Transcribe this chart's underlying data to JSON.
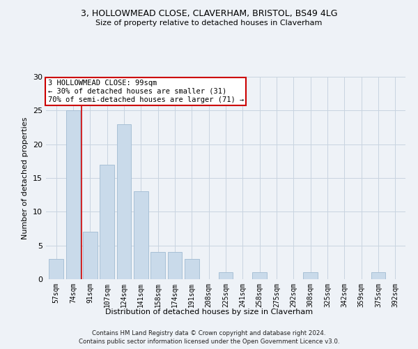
{
  "title1": "3, HOLLOWMEAD CLOSE, CLAVERHAM, BRISTOL, BS49 4LG",
  "title2": "Size of property relative to detached houses in Claverham",
  "xlabel": "Distribution of detached houses by size in Claverham",
  "ylabel": "Number of detached properties",
  "categories": [
    "57sqm",
    "74sqm",
    "91sqm",
    "107sqm",
    "124sqm",
    "141sqm",
    "158sqm",
    "174sqm",
    "191sqm",
    "208sqm",
    "225sqm",
    "241sqm",
    "258sqm",
    "275sqm",
    "292sqm",
    "308sqm",
    "325sqm",
    "342sqm",
    "359sqm",
    "375sqm",
    "392sqm"
  ],
  "values": [
    3,
    25,
    7,
    17,
    23,
    13,
    4,
    4,
    3,
    0,
    1,
    0,
    1,
    0,
    0,
    1,
    0,
    0,
    0,
    1,
    0
  ],
  "bar_color": "#c9daea",
  "bar_edge_color": "#a8c0d6",
  "annotation_line1": "3 HOLLOWMEAD CLOSE: 99sqm",
  "annotation_line2": "← 30% of detached houses are smaller (31)",
  "annotation_line3": "70% of semi-detached houses are larger (71) →",
  "ref_line_x": 1.5,
  "ref_line_color": "#cc0000",
  "annotation_box_color": "#ffffff",
  "annotation_box_edge": "#cc0000",
  "ylim": [
    0,
    30
  ],
  "yticks": [
    0,
    5,
    10,
    15,
    20,
    25,
    30
  ],
  "grid_color": "#c8d4e0",
  "bg_color": "#eef2f7",
  "footer1": "Contains HM Land Registry data © Crown copyright and database right 2024.",
  "footer2": "Contains public sector information licensed under the Open Government Licence v3.0."
}
